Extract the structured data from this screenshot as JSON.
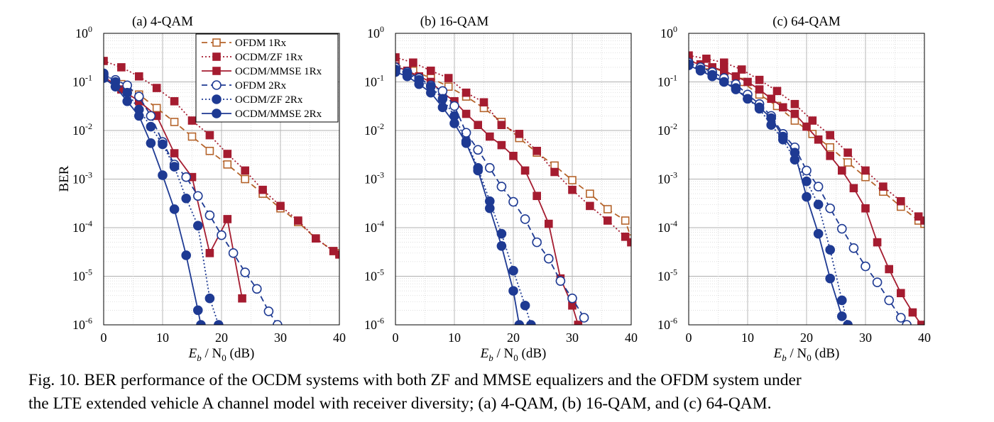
{
  "figure": {
    "caption_line1": "Fig. 10.  BER performance of the OCDM systems with both ZF and MMSE equalizers and the OFDM system under",
    "caption_line2": "the LTE extended vehicle A channel model with receiver diversity; (a) 4-QAM, (b) 16-QAM, and (c) 64-QAM."
  },
  "colors": {
    "ofdm_1rx": "#b5642b",
    "ocdm_1rx": "#a51c30",
    "rx2": "#1e3a93",
    "grid": "#bdbdbd"
  },
  "legend": [
    {
      "label": "OFDM 1Rx",
      "color": "#b5642b",
      "dash": "dash",
      "marker": "square-open"
    },
    {
      "label": "OCDM/ZF 1Rx",
      "color": "#a51c30",
      "dash": "dot",
      "marker": "square-filled"
    },
    {
      "label": "OCDM/MMSE 1Rx",
      "color": "#a51c30",
      "dash": "solid",
      "marker": "square-filled"
    },
    {
      "label": "OFDM 2Rx",
      "color": "#1e3a93",
      "dash": "dash",
      "marker": "circle-open"
    },
    {
      "label": "OCDM/ZF 2Rx",
      "color": "#1e3a93",
      "dash": "dot",
      "marker": "circle-filled"
    },
    {
      "label": "OCDM/MMSE 2Rx",
      "color": "#1e3a93",
      "dash": "solid",
      "marker": "circle-filled"
    }
  ],
  "chart_data": [
    {
      "type": "line",
      "title": "(a) 4-QAM",
      "ylabel": "BER",
      "xlabel_main": "E",
      "xlabel_sub1": "b",
      "xlabel_mid": " / N",
      "xlabel_sub2": "0",
      "xlabel_unit": " (dB)",
      "xlim": [
        0,
        40
      ],
      "ylim": [
        1e-06,
        1
      ],
      "x_ticks": [
        "0",
        "10",
        "20",
        "30",
        "40"
      ],
      "y_ticks": [
        {
          "base": "10",
          "exp": "0"
        },
        {
          "base": "10",
          "exp": "-1"
        },
        {
          "base": "10",
          "exp": "-2"
        },
        {
          "base": "10",
          "exp": "-3"
        },
        {
          "base": "10",
          "exp": "-4"
        },
        {
          "base": "10",
          "exp": "-5"
        },
        {
          "base": "10",
          "exp": "-6"
        }
      ],
      "grid": true,
      "legend_location": "top-right",
      "series": [
        {
          "name": "OFDM 1Rx",
          "x": [
            0,
            3,
            6,
            9,
            12,
            15,
            18,
            21,
            24,
            27,
            30,
            33,
            36,
            39,
            40
          ],
          "y": [
            0.14,
            0.09,
            0.055,
            0.029,
            0.015,
            0.0075,
            0.0038,
            0.002,
            0.001,
            0.0005,
            0.00025,
            0.00013,
            6e-05,
            3.3e-05,
            3e-05
          ]
        },
        {
          "name": "OCDM/ZF 1Rx",
          "x": [
            0,
            3,
            6,
            9,
            12,
            15,
            18,
            21,
            24,
            27,
            30,
            33,
            36,
            39,
            40
          ],
          "y": [
            0.27,
            0.2,
            0.13,
            0.075,
            0.04,
            0.016,
            0.008,
            0.0033,
            0.0015,
            0.0006,
            0.00028,
            0.00014,
            6e-05,
            3.3e-05,
            2.8e-05
          ]
        },
        {
          "name": "OCDM/MMSE 1Rx",
          "x": [
            0,
            3,
            6,
            9,
            12,
            15,
            18,
            21,
            23.5
          ],
          "y": [
            0.13,
            0.07,
            0.04,
            0.02,
            0.0034,
            0.0011,
            3e-05,
            0.00015,
            3.5e-06
          ]
        },
        {
          "name": "OFDM 2Rx",
          "x": [
            0,
            2,
            4,
            6,
            8,
            10,
            12,
            14,
            16,
            18,
            20,
            22,
            24,
            26,
            28,
            29.5
          ],
          "y": [
            0.14,
            0.11,
            0.085,
            0.05,
            0.02,
            0.0058,
            0.002,
            0.0011,
            0.00045,
            0.00018,
            7e-05,
            3e-05,
            1.2e-05,
            5.5e-06,
            1.9e-06,
            1e-06
          ]
        },
        {
          "name": "OCDM/ZF 2Rx",
          "x": [
            0,
            2,
            4,
            6,
            8,
            10,
            12,
            14,
            16,
            18,
            19.5
          ],
          "y": [
            0.15,
            0.1,
            0.06,
            0.027,
            0.012,
            0.0052,
            0.0018,
            0.0004,
            0.00011,
            3.5e-06,
            1e-06
          ]
        },
        {
          "name": "OCDM/MMSE 2Rx",
          "x": [
            0,
            2,
            4,
            6,
            8,
            10,
            12,
            14,
            16,
            16.5
          ],
          "y": [
            0.12,
            0.08,
            0.04,
            0.02,
            0.0055,
            0.0012,
            0.00024,
            2.7e-05,
            2e-06,
            1e-06
          ]
        }
      ]
    },
    {
      "type": "line",
      "title": "(b) 16-QAM",
      "ylabel": "",
      "xlabel_main": "E",
      "xlabel_sub1": "b",
      "xlabel_mid": " / N",
      "xlabel_sub2": "0",
      "xlabel_unit": " (dB)",
      "xlim": [
        0,
        40
      ],
      "ylim": [
        1e-06,
        1
      ],
      "x_ticks": [
        "0",
        "10",
        "20",
        "30",
        "40"
      ],
      "y_ticks": [
        {
          "base": "10",
          "exp": "0"
        },
        {
          "base": "10",
          "exp": "-1"
        },
        {
          "base": "10",
          "exp": "-2"
        },
        {
          "base": "10",
          "exp": "-3"
        },
        {
          "base": "10",
          "exp": "-4"
        },
        {
          "base": "10",
          "exp": "-5"
        },
        {
          "base": "10",
          "exp": "-6"
        }
      ],
      "grid": true,
      "legend_location": "none",
      "series": [
        {
          "name": "OFDM 1Rx",
          "x": [
            0,
            3,
            6,
            9,
            12,
            15,
            18,
            21,
            24,
            27,
            30,
            33,
            36,
            39,
            40
          ],
          "y": [
            0.23,
            0.17,
            0.12,
            0.08,
            0.05,
            0.029,
            0.015,
            0.007,
            0.0035,
            0.0019,
            0.00095,
            0.0005,
            0.00024,
            0.00014,
            6e-05
          ]
        },
        {
          "name": "OCDM/ZF 1Rx",
          "x": [
            0,
            3,
            6,
            9,
            12,
            15,
            18,
            21,
            24,
            27,
            30,
            33,
            36,
            39,
            40
          ],
          "y": [
            0.32,
            0.25,
            0.17,
            0.12,
            0.06,
            0.038,
            0.013,
            0.0085,
            0.0038,
            0.0014,
            0.0006,
            0.00028,
            0.00014,
            6.5e-05,
            5e-05
          ]
        },
        {
          "name": "OCDM/MMSE 1Rx",
          "x": [
            0,
            2,
            4,
            6,
            8,
            10,
            12,
            14,
            16,
            18,
            20,
            22,
            24,
            26,
            28,
            30,
            31
          ],
          "y": [
            0.21,
            0.17,
            0.13,
            0.1,
            0.06,
            0.04,
            0.022,
            0.013,
            0.0075,
            0.005,
            0.003,
            0.0015,
            0.00045,
            0.00012,
            9e-06,
            2.5e-06,
            1e-06
          ]
        },
        {
          "name": "OFDM 2Rx",
          "x": [
            0,
            2,
            4,
            6,
            8,
            10,
            12,
            14,
            16,
            18,
            20,
            22,
            24,
            26,
            28,
            30,
            32
          ],
          "y": [
            0.2,
            0.16,
            0.12,
            0.085,
            0.065,
            0.032,
            0.009,
            0.004,
            0.0017,
            0.0007,
            0.00034,
            0.00015,
            5e-05,
            2.3e-05,
            8e-06,
            3.5e-06,
            1.4e-06
          ]
        },
        {
          "name": "OCDM/ZF 2Rx",
          "x": [
            0,
            2,
            4,
            6,
            8,
            10,
            12,
            14,
            16,
            18,
            20,
            22,
            23
          ],
          "y": [
            0.18,
            0.15,
            0.11,
            0.08,
            0.045,
            0.02,
            0.006,
            0.0017,
            0.00035,
            7.5e-05,
            1.3e-05,
            2.5e-06,
            1e-06
          ]
        },
        {
          "name": "OCDM/MMSE 2Rx",
          "x": [
            0,
            2,
            4,
            6,
            8,
            10,
            12,
            14,
            16,
            18,
            20,
            21
          ],
          "y": [
            0.16,
            0.13,
            0.09,
            0.06,
            0.03,
            0.014,
            0.0055,
            0.0015,
            0.00025,
            4.2e-05,
            5e-06,
            1e-06
          ]
        }
      ]
    },
    {
      "type": "line",
      "title": "(c) 64-QAM",
      "ylabel": "",
      "xlabel_main": "E",
      "xlabel_sub1": "b",
      "xlabel_mid": " / N",
      "xlabel_sub2": "0",
      "xlabel_unit": " (dB)",
      "xlim": [
        0,
        40
      ],
      "ylim": [
        1e-06,
        1
      ],
      "x_ticks": [
        "0",
        "10",
        "20",
        "30",
        "40"
      ],
      "y_ticks": [
        {
          "base": "10",
          "exp": "0"
        },
        {
          "base": "10",
          "exp": "-1"
        },
        {
          "base": "10",
          "exp": "-2"
        },
        {
          "base": "10",
          "exp": "-3"
        },
        {
          "base": "10",
          "exp": "-4"
        },
        {
          "base": "10",
          "exp": "-5"
        },
        {
          "base": "10",
          "exp": "-6"
        }
      ],
      "grid": true,
      "legend_location": "none",
      "series": [
        {
          "name": "OFDM 1Rx",
          "x": [
            0,
            3,
            6,
            9,
            12,
            15,
            18,
            21,
            24,
            27,
            30,
            33,
            36,
            39,
            40
          ],
          "y": [
            0.28,
            0.22,
            0.16,
            0.1,
            0.055,
            0.032,
            0.016,
            0.0085,
            0.0045,
            0.0022,
            0.0011,
            0.00055,
            0.00027,
            0.00014,
            0.00012
          ]
        },
        {
          "name": "OCDM/ZF 1Rx",
          "x": [
            0,
            3,
            6,
            9,
            12,
            15,
            18,
            21,
            24,
            27,
            30,
            33,
            36,
            39,
            40
          ],
          "y": [
            0.35,
            0.3,
            0.25,
            0.18,
            0.11,
            0.065,
            0.035,
            0.016,
            0.008,
            0.0035,
            0.0015,
            0.0007,
            0.00035,
            0.00017,
            0.00014
          ]
        },
        {
          "name": "OCDM/MMSE 1Rx",
          "x": [
            0,
            2,
            4,
            6,
            8,
            10,
            12,
            14,
            16,
            18,
            20,
            22,
            24,
            26,
            28,
            30,
            32,
            34,
            36,
            38,
            39.5
          ],
          "y": [
            0.27,
            0.23,
            0.2,
            0.17,
            0.13,
            0.1,
            0.07,
            0.045,
            0.03,
            0.022,
            0.012,
            0.0065,
            0.003,
            0.0015,
            0.00065,
            0.00025,
            5e-05,
            1.4e-05,
            4.5e-06,
            1.8e-06,
            1e-06
          ]
        },
        {
          "name": "OFDM 2Rx",
          "x": [
            0,
            2,
            4,
            6,
            8,
            10,
            12,
            14,
            16,
            18,
            20,
            22,
            24,
            26,
            28,
            30,
            32,
            34,
            36,
            37
          ],
          "y": [
            0.25,
            0.2,
            0.16,
            0.12,
            0.09,
            0.055,
            0.035,
            0.02,
            0.0085,
            0.0045,
            0.0015,
            0.0007,
            0.00025,
            9.5e-05,
            3.8e-05,
            1.6e-05,
            7.5e-06,
            3.2e-06,
            1.4e-06,
            1e-06
          ]
        },
        {
          "name": "OCDM/ZF 2Rx",
          "x": [
            0,
            2,
            4,
            6,
            8,
            10,
            12,
            14,
            16,
            18,
            20,
            22,
            24,
            26,
            27
          ],
          "y": [
            0.23,
            0.18,
            0.14,
            0.1,
            0.075,
            0.045,
            0.028,
            0.013,
            0.0065,
            0.0025,
            0.0009,
            0.0003,
            3.5e-05,
            3.2e-06,
            1e-06
          ]
        },
        {
          "name": "OCDM/MMSE 2Rx",
          "x": [
            0,
            2,
            4,
            6,
            8,
            10,
            12,
            14,
            16,
            18,
            20,
            22,
            24,
            26
          ],
          "y": [
            0.22,
            0.17,
            0.13,
            0.1,
            0.07,
            0.045,
            0.03,
            0.018,
            0.0075,
            0.0035,
            0.00043,
            7.5e-05,
            9e-06,
            1.5e-06
          ]
        }
      ]
    }
  ]
}
